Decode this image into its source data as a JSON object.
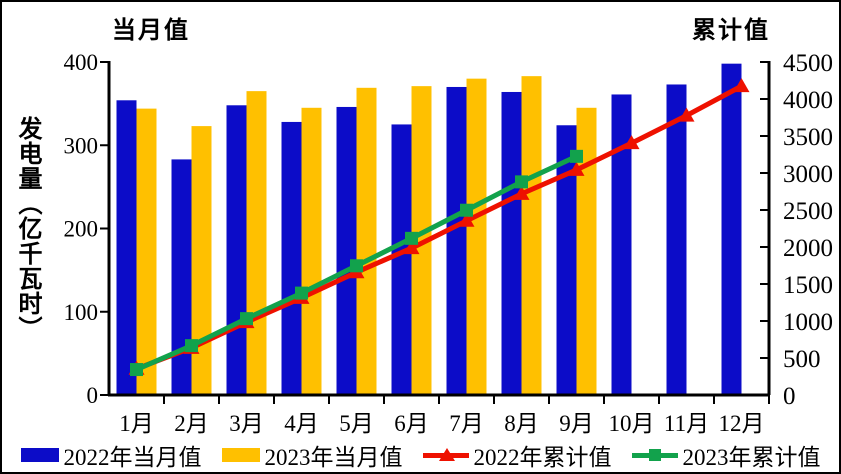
{
  "page": {
    "background": "#FFFFFF",
    "frame_color": "#000000",
    "axis_color": "#000000"
  },
  "chart_data": {
    "type": "bar+line combo (dual axis)",
    "y_axis_title": "发电量（亿千瓦时）",
    "grid": false,
    "legend_position": "bottom",
    "categories": [
      "1月",
      "2月",
      "3月",
      "4月",
      "5月",
      "6月",
      "7月",
      "8月",
      "9月",
      "10月",
      "11月",
      "12月"
    ],
    "left_axis": {
      "title": "当月值",
      "min": 0,
      "max": 400,
      "ticks": [
        0,
        100,
        200,
        300,
        400
      ]
    },
    "right_axis": {
      "title": "累计值",
      "min": 0,
      "max": 4500,
      "ticks": [
        0,
        500,
        1000,
        1500,
        2000,
        2500,
        3000,
        3500,
        4000,
        4500
      ]
    },
    "series": [
      {
        "name": "2022年当月值",
        "kind": "bar",
        "axis": "left",
        "color": "#0C0CC8",
        "values": [
          354,
          283,
          348,
          328,
          346,
          325,
          370,
          364,
          324,
          361,
          373,
          398
        ]
      },
      {
        "name": "2023年当月值",
        "kind": "bar",
        "axis": "left",
        "color": "#FFC000",
        "values": [
          344,
          323,
          365,
          345,
          369,
          371,
          380,
          383,
          345
        ]
      },
      {
        "name": "2022年累计值",
        "kind": "line",
        "marker": "triangle",
        "axis": "right",
        "color": "#EE1100",
        "values": [
          354,
          637,
          985,
          1313,
          1659,
          1984,
          2354,
          2718,
          3042,
          3403,
          3776,
          4174
        ]
      },
      {
        "name": "2023年累计值",
        "kind": "line",
        "marker": "square",
        "axis": "right",
        "color": "#12A24C",
        "values": [
          344,
          667,
          1032,
          1377,
          1746,
          2117,
          2497,
          2880,
          3225
        ]
      }
    ]
  }
}
